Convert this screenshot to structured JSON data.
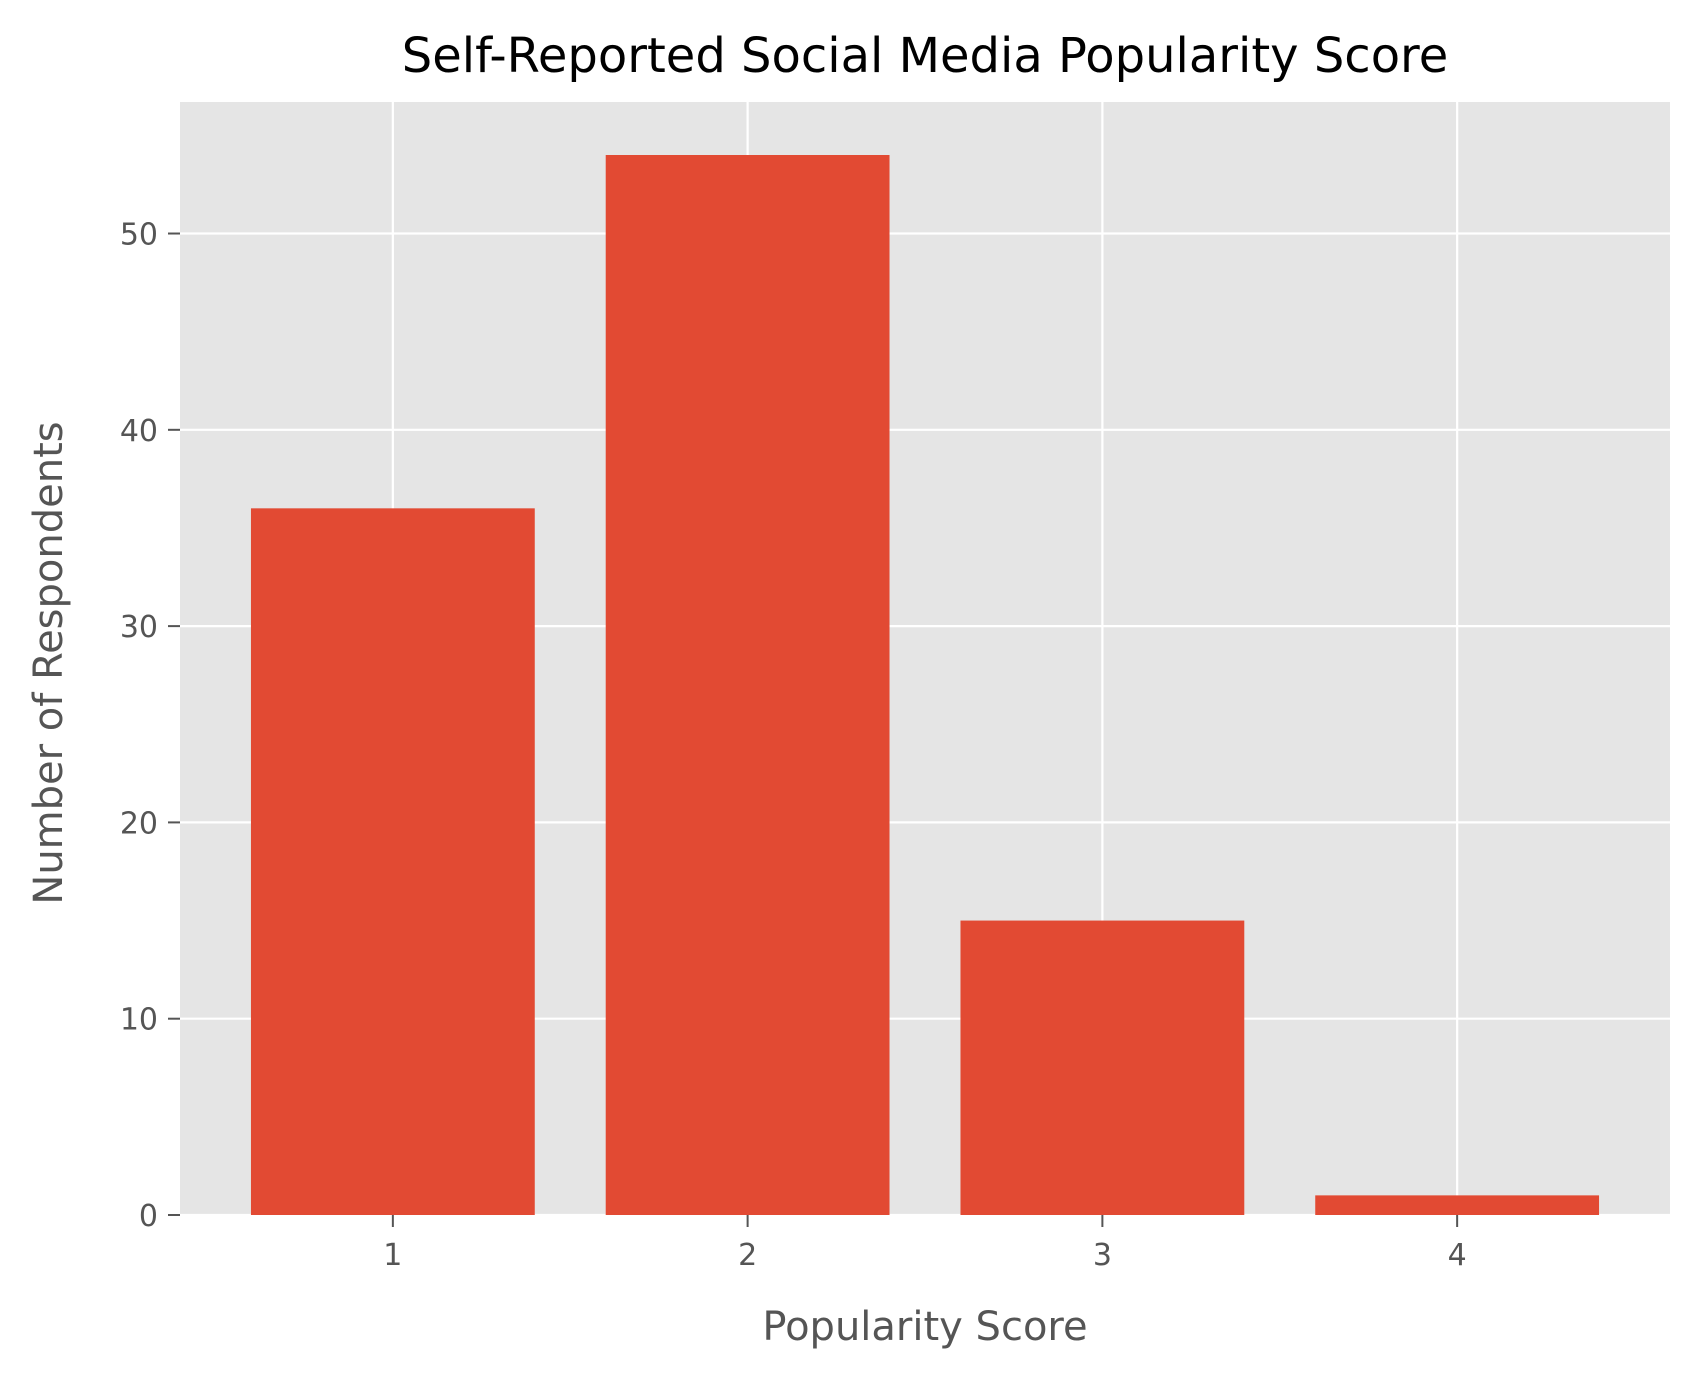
{
  "chart_data": {
    "type": "bar",
    "title": "Self-Reported Social Media Popularity Score",
    "xlabel": "Popularity Score",
    "ylabel": "Number of Respondents",
    "categories": [
      "1",
      "2",
      "3",
      "4"
    ],
    "values": [
      36,
      54,
      15,
      1
    ],
    "ylim": [
      0,
      56.7
    ],
    "yticks": [
      "0",
      "10",
      "20",
      "30",
      "40",
      "50"
    ],
    "grid": true,
    "colors": {
      "bar": "#E24A33",
      "plot_background": "#E5E5E5",
      "grid": "#FFFFFF"
    }
  }
}
